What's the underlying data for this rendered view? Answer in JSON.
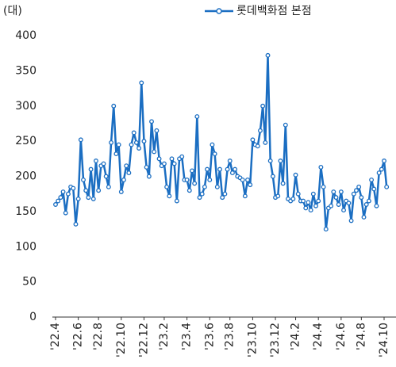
{
  "chart_data": {
    "type": "line",
    "unit_label": "(대)",
    "categories": [
      "'22.4",
      null,
      null,
      null,
      null,
      null,
      null,
      null,
      null,
      "'22.6",
      null,
      null,
      null,
      null,
      null,
      null,
      null,
      "'22.8",
      null,
      null,
      null,
      null,
      null,
      null,
      null,
      null,
      "'22.10",
      null,
      null,
      null,
      null,
      null,
      null,
      null,
      null,
      "'22.12",
      null,
      null,
      null,
      null,
      null,
      null,
      null,
      "'23.2",
      null,
      null,
      null,
      null,
      null,
      null,
      null,
      null,
      "'23.4",
      null,
      null,
      null,
      null,
      null,
      null,
      null,
      null,
      "'23.6",
      null,
      null,
      null,
      null,
      null,
      null,
      null,
      "'23.8",
      null,
      null,
      null,
      null,
      null,
      null,
      null,
      null,
      "'23.10",
      null,
      null,
      null,
      null,
      null,
      null,
      null,
      null,
      "'23.12",
      null,
      null,
      null,
      null,
      null,
      null,
      null,
      "'24.2",
      null,
      null,
      null,
      null,
      null,
      null,
      null,
      null,
      "'24.4",
      null,
      null,
      null,
      null,
      null,
      null,
      null,
      null,
      "'24.6",
      null,
      null,
      null,
      null,
      null,
      null,
      null,
      "'24.8",
      null,
      null,
      null,
      null,
      null,
      null,
      null,
      null,
      "'24.10",
      null
    ],
    "series": [
      {
        "name": "롯데백화점 본점",
        "color": "#1b6ec2",
        "values": [
          160,
          165,
          170,
          178,
          148,
          175,
          185,
          183,
          132,
          168,
          252,
          195,
          180,
          170,
          210,
          168,
          222,
          180,
          215,
          218,
          200,
          185,
          248,
          300,
          232,
          245,
          178,
          195,
          215,
          205,
          245,
          262,
          248,
          240,
          333,
          250,
          213,
          200,
          278,
          235,
          265,
          225,
          215,
          218,
          185,
          172,
          225,
          218,
          165,
          225,
          228,
          195,
          195,
          180,
          208,
          190,
          285,
          170,
          175,
          185,
          210,
          195,
          245,
          232,
          185,
          210,
          170,
          175,
          210,
          222,
          205,
          210,
          200,
          198,
          195,
          172,
          195,
          188,
          252,
          245,
          243,
          265,
          300,
          248,
          372,
          222,
          200,
          170,
          172,
          222,
          190,
          273,
          168,
          165,
          168,
          202,
          175,
          165,
          165,
          155,
          163,
          152,
          175,
          158,
          165,
          213,
          185,
          125,
          155,
          158,
          178,
          170,
          160,
          178,
          152,
          165,
          162,
          137,
          175,
          180,
          185,
          170,
          142,
          160,
          165,
          195,
          182,
          158,
          205,
          210,
          222,
          185
        ]
      }
    ],
    "ylim": [
      0,
      400
    ],
    "yticks": [
      0,
      50,
      100,
      150,
      200,
      250,
      300,
      350,
      400
    ],
    "legend": "top-right"
  }
}
